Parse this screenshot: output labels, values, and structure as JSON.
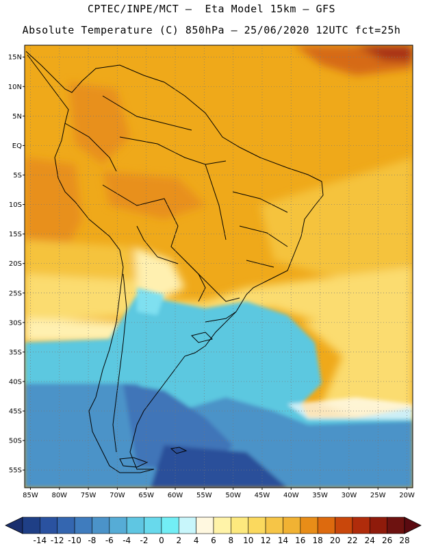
{
  "title": {
    "line1": "CPTEC/INPE/MCT –  Eta Model 15km – GFS",
    "line2": "Absolute Temperature (C) 850hPa – 25/06/2020 12UTC fct=25h"
  },
  "map": {
    "lon_range": [
      -86,
      -19
    ],
    "lat_range": [
      -58,
      17
    ],
    "lat_ticks": [
      {
        "value": 15,
        "label": "15N"
      },
      {
        "value": 10,
        "label": "10N"
      },
      {
        "value": 5,
        "label": "5N"
      },
      {
        "value": 0,
        "label": "EQ"
      },
      {
        "value": -5,
        "label": "5S"
      },
      {
        "value": -10,
        "label": "10S"
      },
      {
        "value": -15,
        "label": "15S"
      },
      {
        "value": -20,
        "label": "20S"
      },
      {
        "value": -25,
        "label": "25S"
      },
      {
        "value": -30,
        "label": "30S"
      },
      {
        "value": -35,
        "label": "35S"
      },
      {
        "value": -40,
        "label": "40S"
      },
      {
        "value": -45,
        "label": "45S"
      },
      {
        "value": -50,
        "label": "50S"
      },
      {
        "value": -55,
        "label": "55S"
      }
    ],
    "lon_ticks": [
      {
        "value": -85,
        "label": "85W"
      },
      {
        "value": -80,
        "label": "80W"
      },
      {
        "value": -75,
        "label": "75W"
      },
      {
        "value": -70,
        "label": "70W"
      },
      {
        "value": -65,
        "label": "65W"
      },
      {
        "value": -60,
        "label": "60W"
      },
      {
        "value": -55,
        "label": "55W"
      },
      {
        "value": -50,
        "label": "50W"
      },
      {
        "value": -45,
        "label": "45W"
      },
      {
        "value": -40,
        "label": "40W"
      },
      {
        "value": -35,
        "label": "35W"
      },
      {
        "value": -30,
        "label": "30W"
      },
      {
        "value": -25,
        "label": "25W"
      },
      {
        "value": -20,
        "label": "20W"
      }
    ],
    "colors": {
      "deep_blue": "#2a4f9a",
      "mid_blue": "#3f74b8",
      "steel_blue": "#4c93c8",
      "cyan": "#5bc8e0",
      "light_cyan": "#7fe0f0",
      "pale_yellow": "#fff0b0",
      "light_yellow": "#fbdc70",
      "gold": "#f5c33c",
      "orange_yellow": "#efa91a",
      "orange": "#e8901c",
      "dark_orange": "#d66a14",
      "red_brown": "#a83214",
      "coast": "#000000"
    }
  },
  "colorbar": {
    "labels": [
      "-14",
      "-12",
      "-10",
      "-8",
      "-6",
      "-4",
      "-2",
      "0",
      "2",
      "4",
      "6",
      "8",
      "10",
      "12",
      "14",
      "16",
      "18",
      "20",
      "22",
      "24",
      "26",
      "28"
    ],
    "colors": [
      "#1f3f86",
      "#2a52a0",
      "#3466b0",
      "#3f7cbe",
      "#4b93c9",
      "#56acd6",
      "#5fc6e2",
      "#68d9ec",
      "#72eef5",
      "#c8f6fb",
      "#fff8e0",
      "#fff3a8",
      "#fde97e",
      "#fbd95e",
      "#f6c547",
      "#f1b233",
      "#e88d18",
      "#dd6a0e",
      "#c9470b",
      "#b02c0b",
      "#8f1b0b",
      "#6d1210"
    ],
    "left_arrow_color": "#1a2f6e",
    "right_arrow_color": "#5a0a10"
  }
}
